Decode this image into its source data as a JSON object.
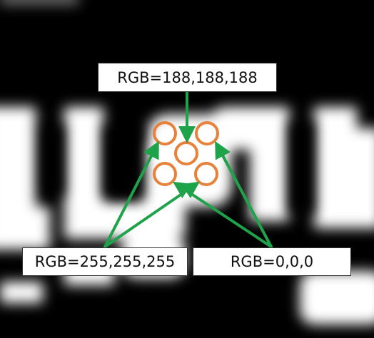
{
  "labels": {
    "center": "RGB=188,188,188",
    "white": "RGB=255,255,255",
    "black": "RGB=0,0,0"
  },
  "colors": {
    "marker_ring": "#E8823A",
    "arrow": "#1FA34A",
    "background": "#000000",
    "blurred_shape": "#FFFFFF"
  },
  "background_description_icon": "blurred-text-image"
}
